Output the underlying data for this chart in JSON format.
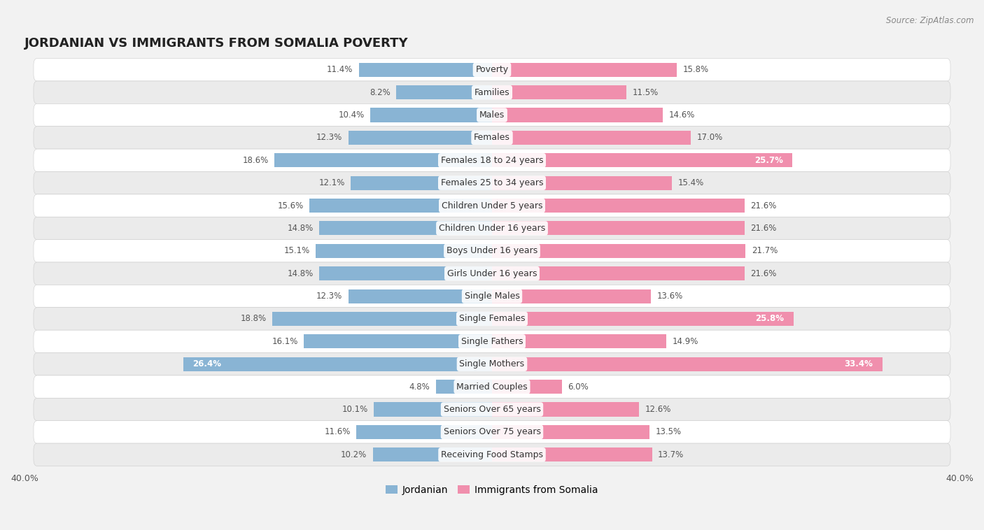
{
  "title": "JORDANIAN VS IMMIGRANTS FROM SOMALIA POVERTY",
  "source": "Source: ZipAtlas.com",
  "categories": [
    "Poverty",
    "Families",
    "Males",
    "Females",
    "Females 18 to 24 years",
    "Females 25 to 34 years",
    "Children Under 5 years",
    "Children Under 16 years",
    "Boys Under 16 years",
    "Girls Under 16 years",
    "Single Males",
    "Single Females",
    "Single Fathers",
    "Single Mothers",
    "Married Couples",
    "Seniors Over 65 years",
    "Seniors Over 75 years",
    "Receiving Food Stamps"
  ],
  "jordanian": [
    11.4,
    8.2,
    10.4,
    12.3,
    18.6,
    12.1,
    15.6,
    14.8,
    15.1,
    14.8,
    12.3,
    18.8,
    16.1,
    26.4,
    4.8,
    10.1,
    11.6,
    10.2
  ],
  "somalia": [
    15.8,
    11.5,
    14.6,
    17.0,
    25.7,
    15.4,
    21.6,
    21.6,
    21.7,
    21.6,
    13.6,
    25.8,
    14.9,
    33.4,
    6.0,
    12.6,
    13.5,
    13.7
  ],
  "jordanian_color": "#89b4d4",
  "somalia_color": "#f08fad",
  "jordanian_label": "Jordanian",
  "somalia_label": "Immigrants from Somalia",
  "xlim": 40.0,
  "background_color": "#f2f2f2",
  "row_bg_odd": "#ffffff",
  "row_bg_even": "#ebebeb",
  "bar_height": 0.62,
  "title_fontsize": 13,
  "label_fontsize": 9,
  "value_fontsize": 8.5,
  "inside_label_thresh": 22.0
}
